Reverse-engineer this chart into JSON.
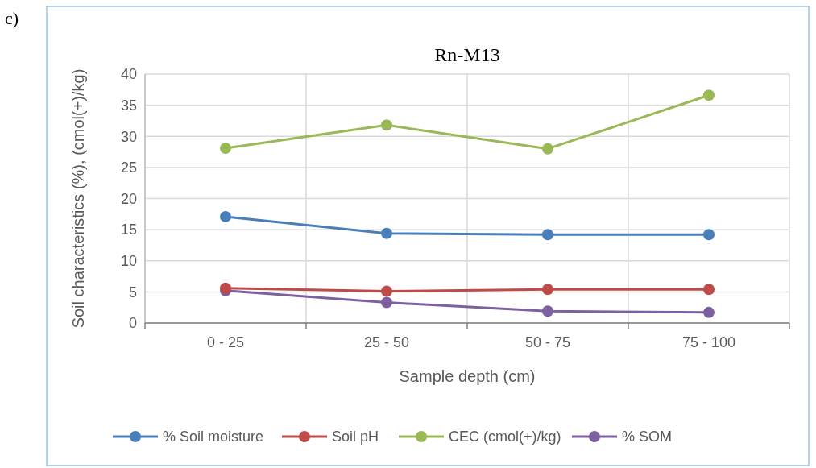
{
  "chart_data": {
    "type": "line",
    "title": "Rn-M13",
    "xlabel": "Sample depth (cm)",
    "ylabel": "Soil characteristics (%), (cmol(+)/kg)",
    "annotations": [
      "c)"
    ],
    "categories": [
      "0 - 25",
      "25 - 50",
      "50 - 75",
      "75 - 100"
    ],
    "series": [
      {
        "name": "% Soil moisture",
        "color": "#4a7ebb",
        "values": [
          17.1,
          14.4,
          14.2,
          14.2
        ]
      },
      {
        "name": "Soil pH",
        "color": "#be4b48",
        "values": [
          5.6,
          5.1,
          5.4,
          5.4
        ]
      },
      {
        "name": "CEC (cmol(+)/kg)",
        "color": "#98b954",
        "values": [
          28.1,
          31.8,
          28.0,
          36.6
        ]
      },
      {
        "name": "% SOM",
        "color": "#7d60a0",
        "values": [
          5.2,
          3.3,
          1.9,
          1.7
        ]
      }
    ],
    "ylim": [
      0,
      40
    ],
    "yticks": [
      0,
      5,
      10,
      15,
      20,
      25,
      30,
      35,
      40
    ],
    "grid": true,
    "legend": "bottom",
    "marker": "circle",
    "line_style": "solid"
  }
}
